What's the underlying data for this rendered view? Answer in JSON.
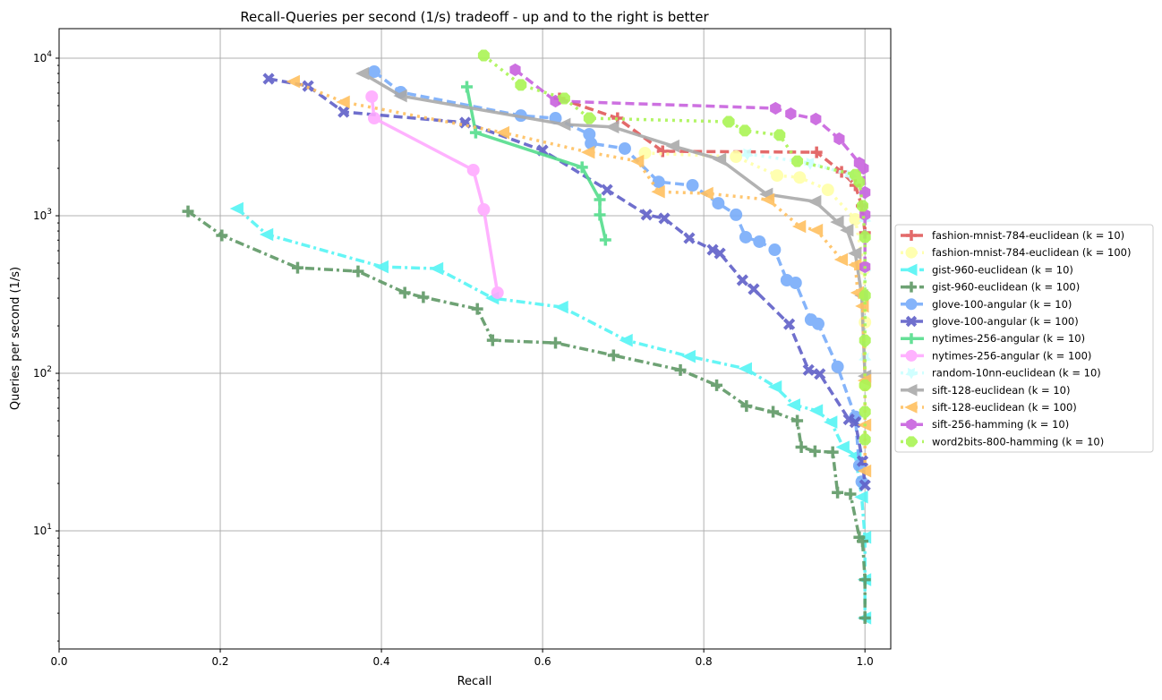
{
  "chart_data": {
    "type": "line",
    "title": "Recall-Queries per second (1/s) tradeoff - up and to the right is better",
    "xlabel": "Recall",
    "ylabel": "Queries per second (1/s)",
    "xlim": [
      0.0,
      1.032
    ],
    "ylim": [
      1.78,
      15400
    ],
    "yscale": "log",
    "grid": true,
    "legend_placement": "right-outside",
    "xticks": [
      {
        "value": 0.0,
        "label": "0.0"
      },
      {
        "value": 0.2,
        "label": "0.2"
      },
      {
        "value": 0.4,
        "label": "0.4"
      },
      {
        "value": 0.6,
        "label": "0.6"
      },
      {
        "value": 0.8,
        "label": "0.8"
      },
      {
        "value": 1.0,
        "label": "1.0"
      }
    ],
    "yticks": [
      {
        "value": 10,
        "base": "10",
        "exp": "1"
      },
      {
        "value": 100,
        "base": "10",
        "exp": "2"
      },
      {
        "value": 1000,
        "base": "10",
        "exp": "3"
      },
      {
        "value": 10000,
        "base": "10",
        "exp": "4"
      }
    ],
    "series": [
      {
        "name": "fashion-mnist-784-euclidean (k = 10)",
        "color": "#e05a5a",
        "dash": "dashed",
        "marker": "plus",
        "x": [
          0.621,
          0.693,
          0.749,
          0.94,
          0.971,
          0.988,
          0.996,
          1.0
        ],
        "y": [
          5550,
          4160,
          2565,
          2530,
          1900,
          1560,
          1155,
          780
        ]
      },
      {
        "name": "fashion-mnist-784-euclidean (k = 100)",
        "color": "#ffffa8",
        "dash": "dotted",
        "marker": "circle",
        "x": [
          0.727,
          0.84,
          0.891,
          0.919,
          0.954,
          0.988,
          0.999,
          1.0,
          1.0
        ],
        "y": [
          2500,
          2370,
          1800,
          1750,
          1460,
          950,
          460,
          211,
          84
        ]
      },
      {
        "name": "gist-960-euclidean (k = 10)",
        "color": "#55f5f5",
        "dash": "dashdot",
        "marker": "triangle-left",
        "x": [
          0.221,
          0.258,
          0.401,
          0.469,
          0.538,
          0.624,
          0.704,
          0.782,
          0.852,
          0.889,
          0.912,
          0.94,
          0.958,
          0.973,
          0.988,
          0.996,
          1.0,
          1.0,
          1.0
        ],
        "y": [
          1110,
          760,
          474,
          462,
          300,
          263,
          162,
          128,
          107,
          82,
          63,
          58,
          49,
          34,
          30,
          16.4,
          9.1,
          4.9,
          2.8
        ]
      },
      {
        "name": "gist-960-euclidean (k = 100)",
        "color": "#5f9966",
        "dash": "dashdot",
        "marker": "plus",
        "x": [
          0.16,
          0.202,
          0.296,
          0.371,
          0.429,
          0.452,
          0.519,
          0.538,
          0.616,
          0.688,
          0.771,
          0.816,
          0.853,
          0.886,
          0.916,
          0.921,
          0.938,
          0.96,
          0.966,
          0.982,
          0.993,
          0.997,
          1.0,
          1.0
        ],
        "y": [
          1067,
          750,
          468,
          444,
          325,
          304,
          256,
          162,
          156,
          130,
          105,
          84,
          62,
          57,
          50,
          34,
          32,
          31.6,
          17.5,
          17.1,
          9.1,
          8.6,
          4.9,
          2.8
        ]
      },
      {
        "name": "glove-100-angular (k = 10)",
        "color": "#78acfa",
        "dash": "dashed",
        "marker": "circle",
        "x": [
          0.391,
          0.424,
          0.573,
          0.616,
          0.658,
          0.66,
          0.702,
          0.744,
          0.786,
          0.818,
          0.84,
          0.852,
          0.869,
          0.888,
          0.903,
          0.914,
          0.933,
          0.942,
          0.966,
          0.988,
          0.993,
          0.996
        ],
        "y": [
          8220,
          6080,
          4320,
          4160,
          3290,
          2880,
          2670,
          1640,
          1560,
          1200,
          1015,
          731,
          685,
          608,
          390,
          375,
          219,
          206,
          110,
          53,
          26,
          20.5
        ]
      },
      {
        "name": "glove-100-angular (k = 100)",
        "color": "#6060c8",
        "dash": "dashed",
        "marker": "x",
        "x": [
          0.26,
          0.309,
          0.353,
          0.504,
          0.6,
          0.68,
          0.729,
          0.751,
          0.782,
          0.811,
          0.82,
          0.848,
          0.862,
          0.906,
          0.93,
          0.944,
          0.98,
          0.988,
          0.997,
          1.0
        ],
        "y": [
          7400,
          6660,
          4560,
          3900,
          2600,
          1460,
          1015,
          962,
          721,
          608,
          577,
          390,
          342,
          205,
          105,
          99,
          51,
          49,
          27.7,
          19.5
        ]
      },
      {
        "name": "nytimes-256-angular (k = 10)",
        "color": "#55dd8c",
        "dash": "solid",
        "marker": "plus",
        "x": [
          0.506,
          0.517,
          0.649,
          0.671,
          0.671,
          0.678
        ],
        "y": [
          6580,
          3370,
          2030,
          1265,
          1013,
          703
        ]
      },
      {
        "name": "nytimes-256-angular (k = 100)",
        "color": "#ffaaff",
        "dash": "solid",
        "marker": "circle",
        "x": [
          0.388,
          0.391,
          0.514,
          0.527,
          0.544
        ],
        "y": [
          5700,
          4160,
          1950,
          1096,
          325
        ]
      },
      {
        "name": "random-10nn-euclidean (k = 10)",
        "color": "#ccffff",
        "dash": "dotted",
        "marker": "star",
        "x": [
          0.854,
          0.932,
          0.982,
          0.999,
          1.0,
          1.0,
          1.0
        ],
        "y": [
          2470,
          2160,
          1820,
          1406,
          950,
          460,
          125
        ]
      },
      {
        "name": "sift-128-euclidean (k = 10)",
        "color": "#aaaaaa",
        "dash": "solid",
        "marker": "triangle-left",
        "x": [
          0.377,
          0.424,
          0.627,
          0.687,
          0.762,
          0.82,
          0.878,
          0.938,
          0.966,
          0.978,
          0.988,
          0.996,
          1.0
        ],
        "y": [
          8000,
          5770,
          3800,
          3660,
          2770,
          2280,
          1370,
          1230,
          912,
          810,
          577,
          312,
          96
        ]
      },
      {
        "name": "sift-128-euclidean (k = 100)",
        "color": "#ffc060",
        "dash": "dotted",
        "marker": "triangle-left",
        "x": [
          0.291,
          0.353,
          0.551,
          0.657,
          0.718,
          0.744,
          0.804,
          0.88,
          0.919,
          0.94,
          0.971,
          0.988,
          0.991,
          0.997,
          1.0,
          1.0,
          1.0
        ],
        "y": [
          7110,
          5270,
          3370,
          2530,
          2220,
          1420,
          1386,
          1265,
          855,
          810,
          527,
          488,
          325,
          267,
          90,
          47,
          24
        ]
      },
      {
        "name": "sift-256-hamming (k = 10)",
        "color": "#c862de",
        "dash": "dashed",
        "marker": "hexagon",
        "x": [
          0.566,
          0.616,
          0.889,
          0.908,
          0.939,
          0.968,
          0.993,
          0.998,
          1.0,
          1.0,
          1.0
        ],
        "y": [
          8440,
          5340,
          4810,
          4440,
          4110,
          3080,
          2160,
          2000,
          1406,
          1015,
          474
        ]
      },
      {
        "name": "word2bits-800-hamming (k = 10)",
        "color": "#aaf555",
        "dash": "dotted",
        "marker": "octagon",
        "x": [
          0.527,
          0.573,
          0.627,
          0.658,
          0.831,
          0.851,
          0.894,
          0.916,
          0.988,
          0.993,
          0.997,
          1.0,
          1.0,
          1.0,
          1.0,
          1.0,
          1.0
        ],
        "y": [
          10400,
          6760,
          5550,
          4160,
          3950,
          3470,
          3250,
          2220,
          1820,
          1640,
          1155,
          731,
          312,
          162,
          84,
          57,
          38
        ]
      }
    ]
  }
}
